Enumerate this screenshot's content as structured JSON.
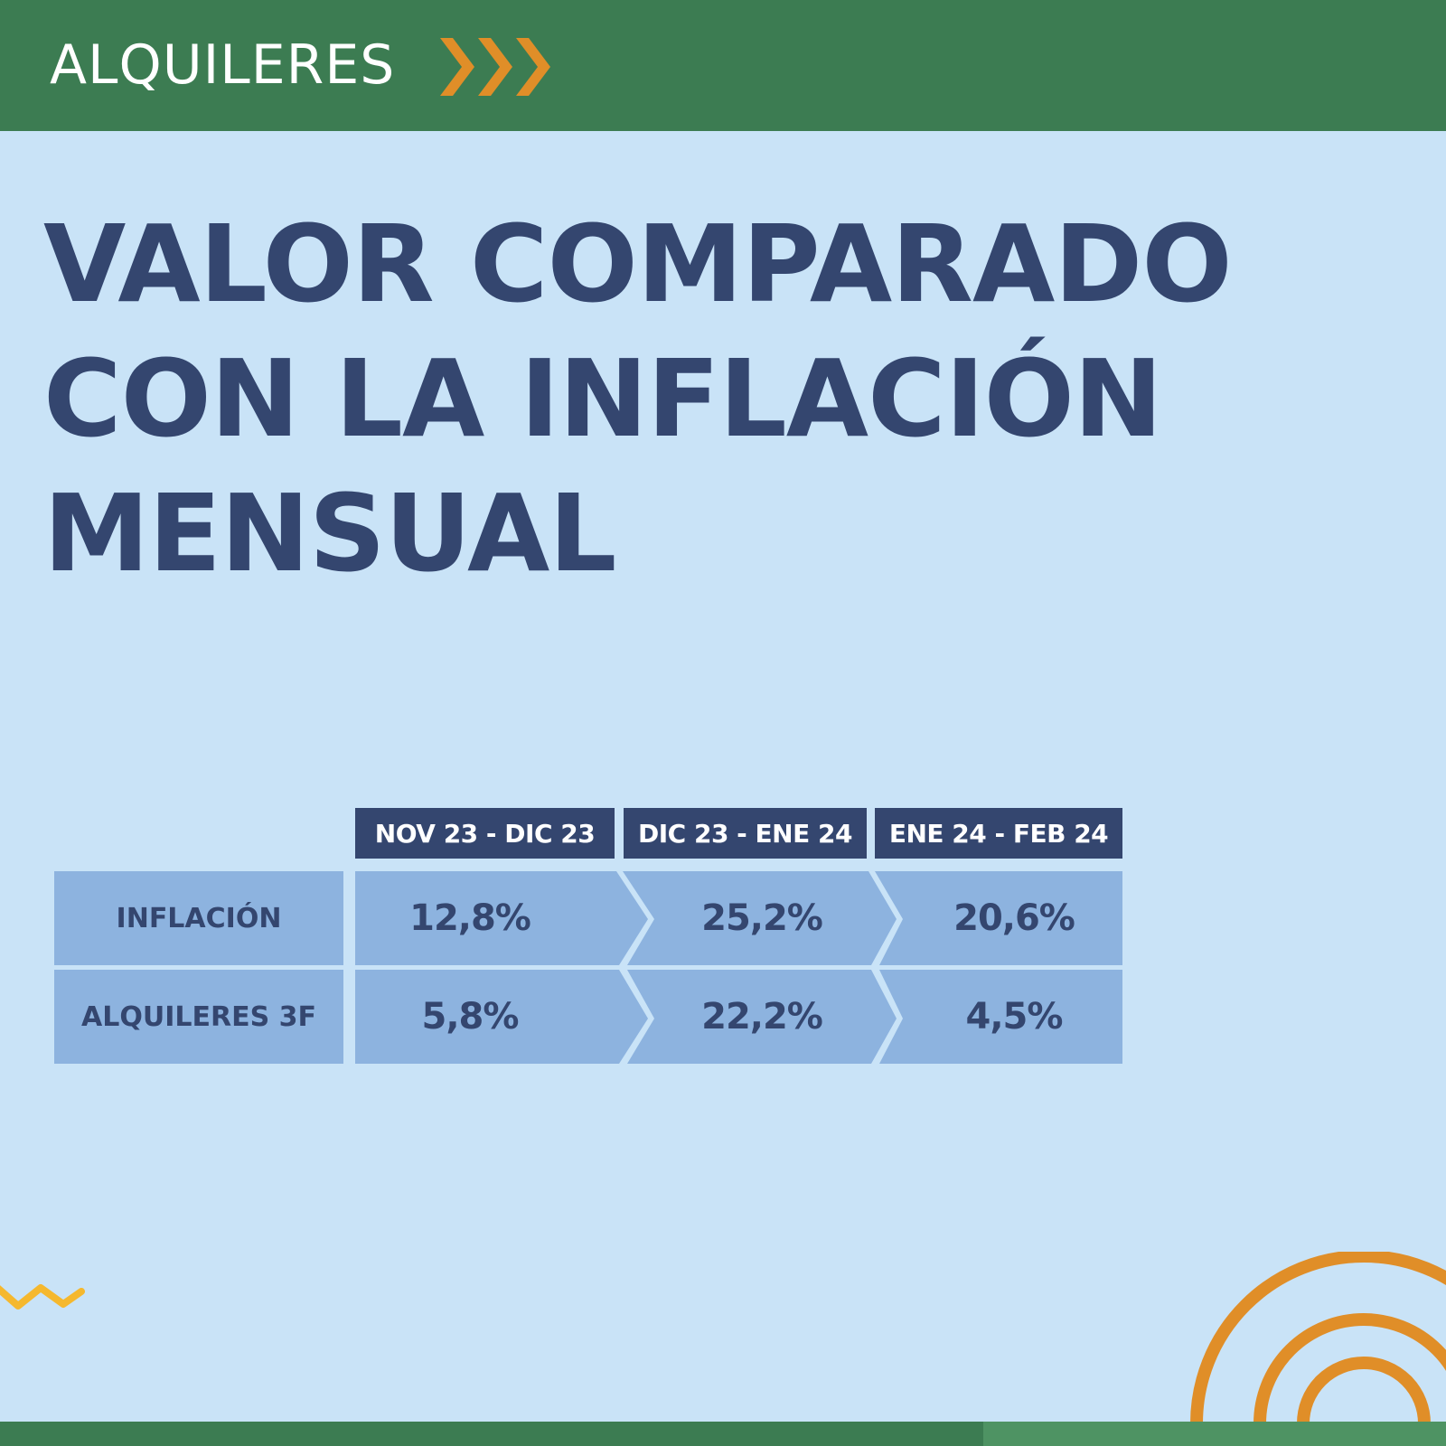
{
  "header": {
    "section_label": "ALQUILERES",
    "chevron_color": "#e08e28",
    "background_color": "#3c7c52"
  },
  "headline": {
    "line1": "VALOR COMPARADO",
    "line2": "CON LA INFLACIÓN",
    "line3": "MENSUAL"
  },
  "table": {
    "columns": [
      "NOV 23 - DIC 23",
      "DIC 23 - ENE 24",
      "ENE 24 - FEB 24"
    ],
    "rows": [
      {
        "label": "INFLACIÓN",
        "values": [
          "12,8%",
          "25,2%",
          "20,6%"
        ]
      },
      {
        "label": "ALQUILERES 3F",
        "values": [
          "5,8%",
          "22,2%",
          "4,5%"
        ]
      }
    ]
  },
  "colors": {
    "background": "#c9e3f7",
    "navy": "#34466f",
    "cell_blue": "#8db3df",
    "accent_orange": "#e08e28",
    "accent_yellow": "#f5b82e",
    "green": "#3c7c52"
  },
  "decorations": [
    "zigzag-line",
    "concentric-arcs"
  ]
}
